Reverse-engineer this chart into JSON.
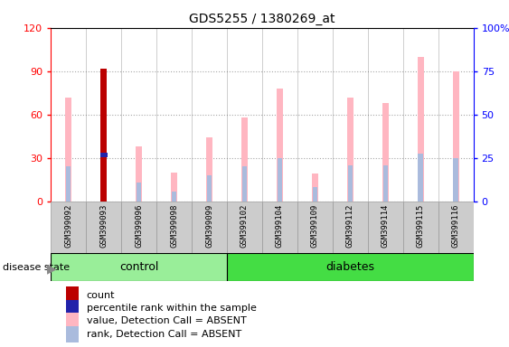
{
  "title": "GDS5255 / 1380269_at",
  "samples": [
    "GSM399092",
    "GSM399093",
    "GSM399096",
    "GSM399098",
    "GSM399099",
    "GSM399102",
    "GSM399104",
    "GSM399109",
    "GSM399112",
    "GSM399114",
    "GSM399115",
    "GSM399116"
  ],
  "groups": [
    "control",
    "control",
    "control",
    "control",
    "control",
    "diabetes",
    "diabetes",
    "diabetes",
    "diabetes",
    "diabetes",
    "diabetes",
    "diabetes"
  ],
  "pink_bar_values": [
    72,
    92,
    38,
    20,
    44,
    58,
    78,
    19,
    72,
    68,
    100,
    90
  ],
  "blue_bar_values": [
    24,
    32,
    13,
    7,
    18,
    24,
    30,
    10,
    25,
    25,
    33,
    30
  ],
  "red_bar_index": 1,
  "red_bar_value": 92,
  "red_bar_blue_dot": 32,
  "ylim_left": [
    0,
    120
  ],
  "ylim_right": [
    0,
    100
  ],
  "yticks_left": [
    0,
    30,
    60,
    90,
    120
  ],
  "yticks_right": [
    0,
    25,
    50,
    75,
    100
  ],
  "ytick_labels_right": [
    "0",
    "25",
    "50",
    "75",
    "100%"
  ],
  "pink_color": "#FFB6C1",
  "light_blue_color": "#AABBDD",
  "red_color": "#BB0000",
  "blue_dot_color": "#2222AA",
  "control_color": "#99EE99",
  "diabetes_color": "#44DD44",
  "sample_box_color": "#CCCCCC",
  "sample_box_edge": "#999999",
  "plot_bg": "#FFFFFF",
  "legend_items": [
    "count",
    "percentile rank within the sample",
    "value, Detection Call = ABSENT",
    "rank, Detection Call = ABSENT"
  ],
  "legend_colors": [
    "#BB0000",
    "#2222AA",
    "#FFB6C1",
    "#AABBDD"
  ]
}
